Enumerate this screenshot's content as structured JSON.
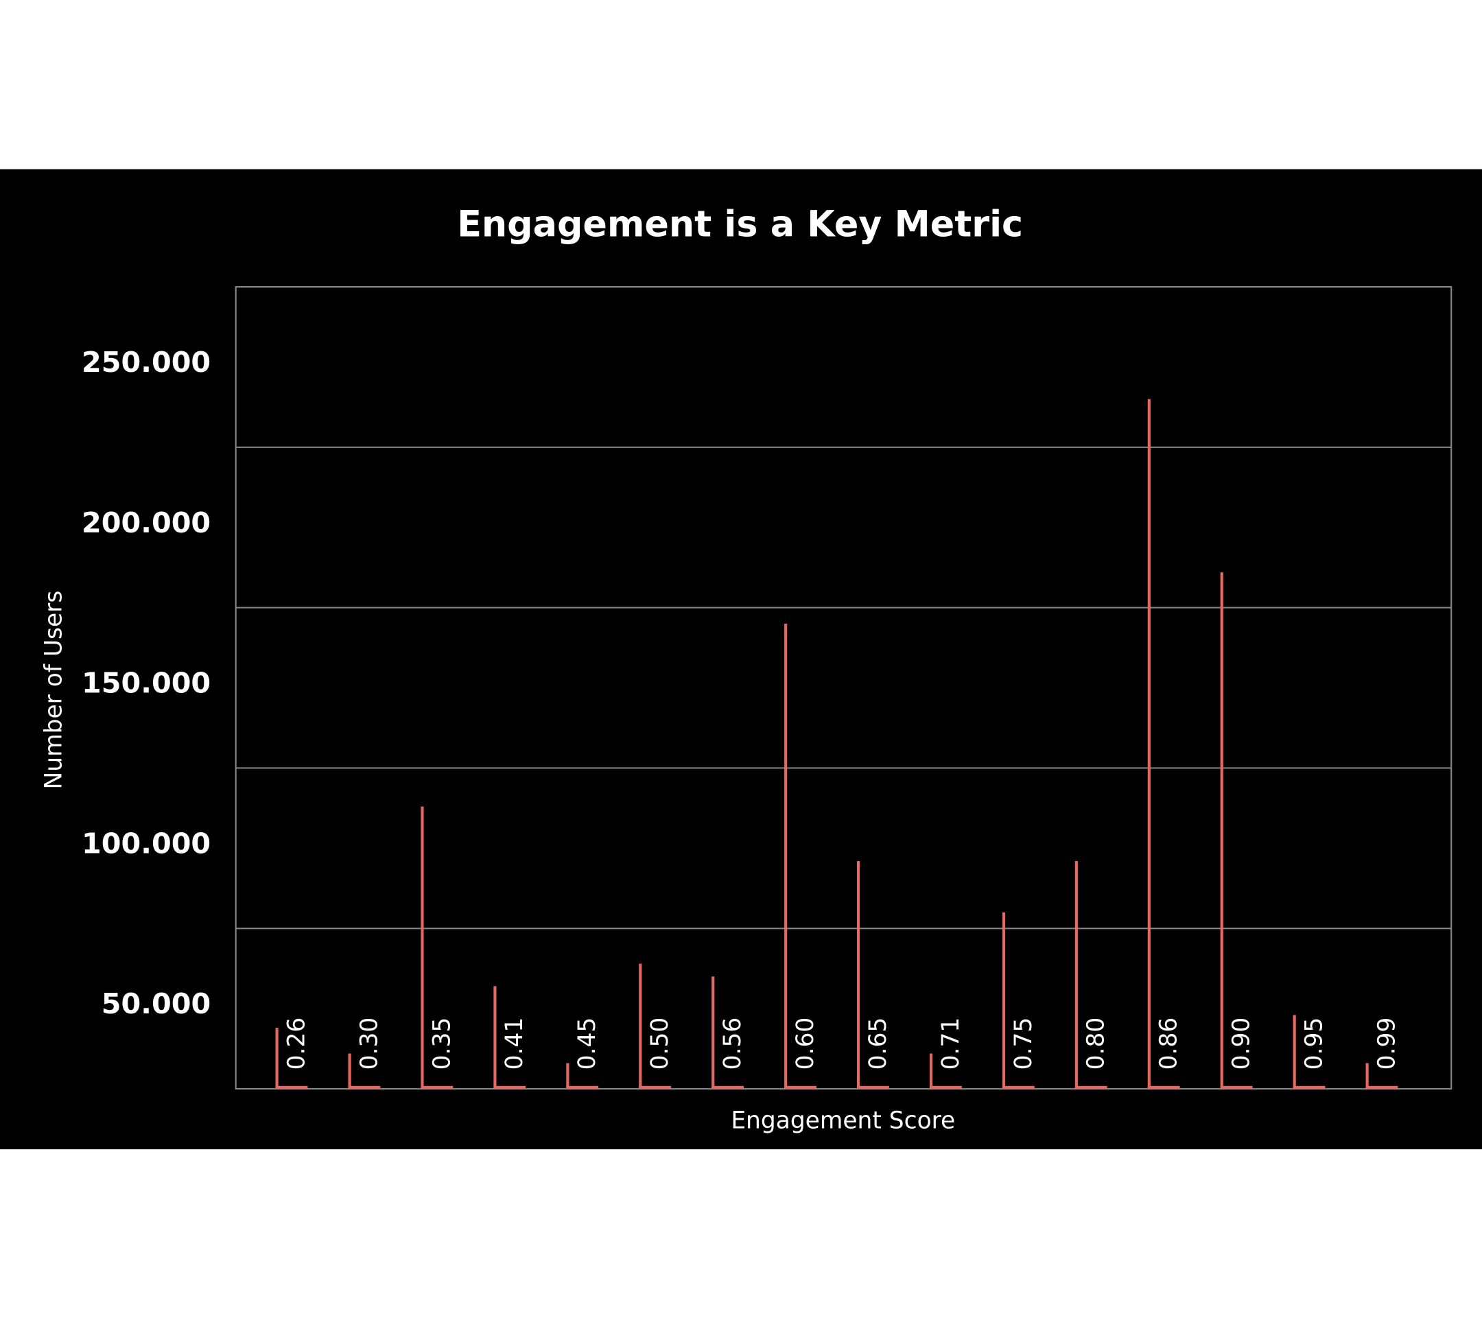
{
  "chart_data": {
    "type": "bar",
    "title": "Engagement is a Key Metric",
    "x_label": "Engagement Score",
    "y_label": "Number of Users",
    "categories": [
      "0.26",
      "0.30",
      "0.35",
      "0.41",
      "0.45",
      "0.50",
      "0.56",
      "0.60",
      "0.65",
      "0.71",
      "0.75",
      "0.80",
      "0.86",
      "0.90",
      "0.95",
      "0.99"
    ],
    "values": [
      19000,
      11000,
      88000,
      32000,
      8000,
      39000,
      35000,
      145000,
      71000,
      11000,
      55000,
      71000,
      215000,
      161000,
      23000,
      8000
    ],
    "color": "#e8685f",
    "ylim": [
      0,
      250000
    ],
    "yticks": [
      {
        "value": 50000,
        "label": "50.000"
      },
      {
        "value": 100000,
        "label": "100.000"
      },
      {
        "value": 150000,
        "label": "150.000"
      },
      {
        "value": 200000,
        "label": "200.000"
      },
      {
        "value": 250000,
        "label": "250.000"
      }
    ],
    "grid": true
  }
}
